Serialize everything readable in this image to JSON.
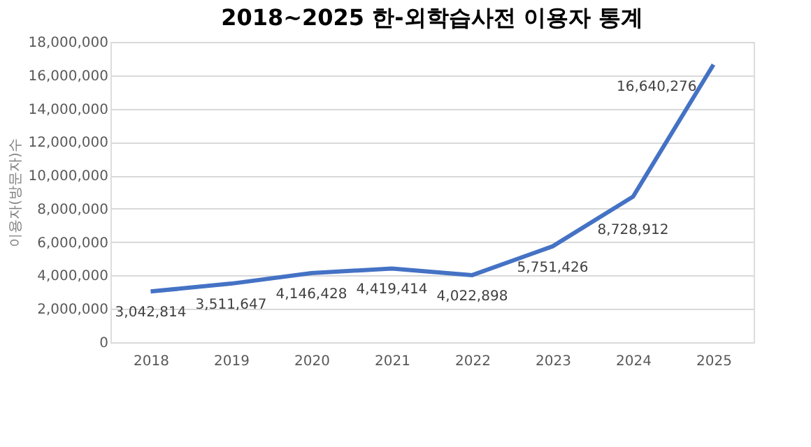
{
  "chart_data": {
    "type": "line",
    "title": "2018~2025 한-외학습사전 이용자 통계",
    "ylabel": "이용자(방문자)수",
    "categories": [
      "2018",
      "2019",
      "2020",
      "2021",
      "2022",
      "2023",
      "2024",
      "2025"
    ],
    "series": [
      {
        "color": "#4472c4",
        "values": [
          3042814,
          3511647,
          4146428,
          4419414,
          4022898,
          5751426,
          8728912,
          16640276
        ],
        "value_labels": [
          "3,042,814",
          "3,511,647",
          "4,146,428",
          "4,419,414",
          "4,022,898",
          "5,751,426",
          "8,728,912",
          "16,640,276"
        ]
      }
    ],
    "ylim": [
      0,
      18000000
    ],
    "yticks": [
      0,
      {
        "value": 2000000,
        "label": "2,000,000"
      },
      {
        "value": 4000000,
        "label": "4,000,000"
      },
      {
        "value": 6000000,
        "label": "6,000,000"
      },
      {
        "value": 8000000,
        "label": "8,000,000"
      },
      {
        "value": 10000000,
        "label": "10,000,000"
      },
      {
        "value": 12000000,
        "label": "12,000,000"
      },
      {
        "value": 14000000,
        "label": "14,000,000"
      },
      {
        "value": 16000000,
        "label": "16,000,000"
      },
      {
        "value": 18000000,
        "label": "18,000,000"
      }
    ],
    "grid": "y",
    "data_labels": true,
    "legend": false,
    "marker": "none",
    "line_style": "solid"
  }
}
